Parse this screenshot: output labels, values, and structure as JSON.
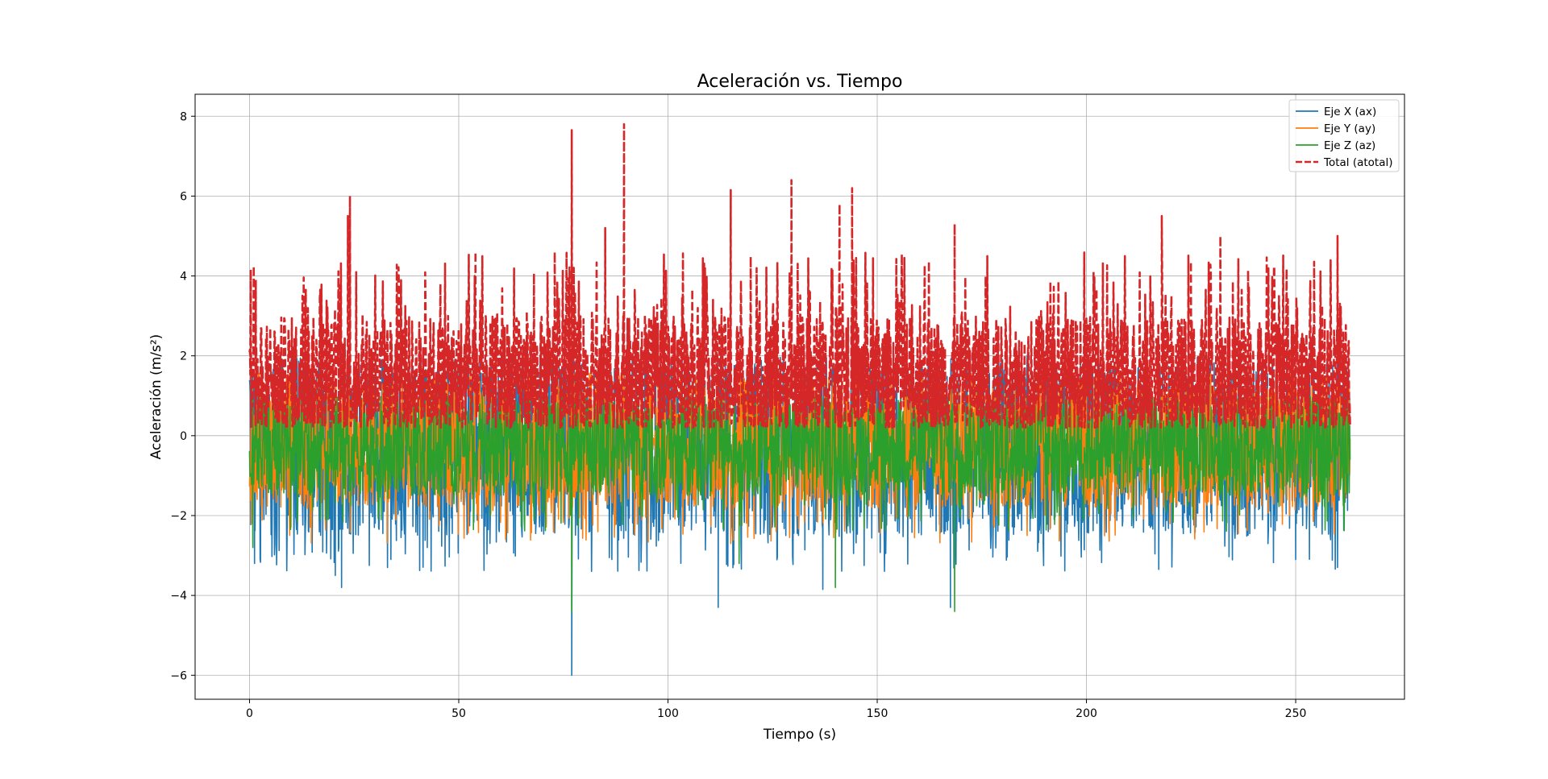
{
  "chart_data": {
    "type": "line",
    "title": "Aceleración vs. Tiempo",
    "xlabel": "Tiempo (s)",
    "ylabel": "Aceleración (m/s²)",
    "xlim": [
      -13,
      276
    ],
    "ylim": [
      -6.6,
      8.55
    ],
    "x_ticks": [
      0,
      50,
      100,
      150,
      200,
      250
    ],
    "y_ticks": [
      -6,
      -4,
      -2,
      0,
      2,
      4,
      6,
      8
    ],
    "x_tick_labels": [
      "0",
      "50",
      "100",
      "150",
      "200",
      "250"
    ],
    "y_tick_labels": [
      "−6",
      "−4",
      "−2",
      "0",
      "2",
      "4",
      "6",
      "8"
    ],
    "grid": true,
    "legend_position": "top-right",
    "x_range": [
      0,
      263
    ],
    "series": [
      {
        "name": "Eje X (ax)",
        "color": "#1f77b4",
        "style": "solid",
        "envelope": {
          "low": -2.5,
          "high": 2.0
        },
        "notable_points": [
          {
            "x": 1.2,
            "y": -3.2
          },
          {
            "x": 20.5,
            "y": -3.5
          },
          {
            "x": 22,
            "y": -3.8
          },
          {
            "x": 77,
            "y": -6.0
          },
          {
            "x": 112,
            "y": -4.3
          },
          {
            "x": 137,
            "y": -3.85
          },
          {
            "x": 167.5,
            "y": -4.3
          },
          {
            "x": 250,
            "y": -3.1
          },
          {
            "x": 260,
            "y": -3.3
          }
        ]
      },
      {
        "name": "Eje Y (ay)",
        "color": "#ff7f0e",
        "style": "solid",
        "envelope": {
          "low": -1.8,
          "high": 1.6
        },
        "notable_points": [
          {
            "x": 0.5,
            "y": -2.2
          },
          {
            "x": 115,
            "y": -2.7
          },
          {
            "x": 220,
            "y": -2.2
          }
        ]
      },
      {
        "name": "Eje Z (az)",
        "color": "#2ca02c",
        "style": "solid",
        "envelope": {
          "low": -1.5,
          "high": 1.0
        },
        "notable_points": [
          {
            "x": 0.8,
            "y": -2.8
          },
          {
            "x": 77,
            "y": -4.4
          },
          {
            "x": 117,
            "y": -3.2
          },
          {
            "x": 140,
            "y": -3.8
          },
          {
            "x": 168.5,
            "y": -4.4
          }
        ]
      },
      {
        "name": "Total (atotal)",
        "color": "#d62728",
        "style": "dashed",
        "envelope": {
          "low": 0.2,
          "high": 3.0
        },
        "notable_points": [
          {
            "x": 1.5,
            "y": 3.9
          },
          {
            "x": 24,
            "y": 6.0
          },
          {
            "x": 23.5,
            "y": 5.5
          },
          {
            "x": 54,
            "y": 4.6
          },
          {
            "x": 77,
            "y": 7.65
          },
          {
            "x": 89.5,
            "y": 7.8
          },
          {
            "x": 85,
            "y": 5.2
          },
          {
            "x": 115,
            "y": 6.15
          },
          {
            "x": 129.5,
            "y": 6.4
          },
          {
            "x": 144,
            "y": 6.2
          },
          {
            "x": 141,
            "y": 5.8
          },
          {
            "x": 168.5,
            "y": 5.3
          },
          {
            "x": 218,
            "y": 5.5
          },
          {
            "x": 232,
            "y": 5.0
          },
          {
            "x": 260,
            "y": 5.0
          }
        ]
      }
    ]
  }
}
